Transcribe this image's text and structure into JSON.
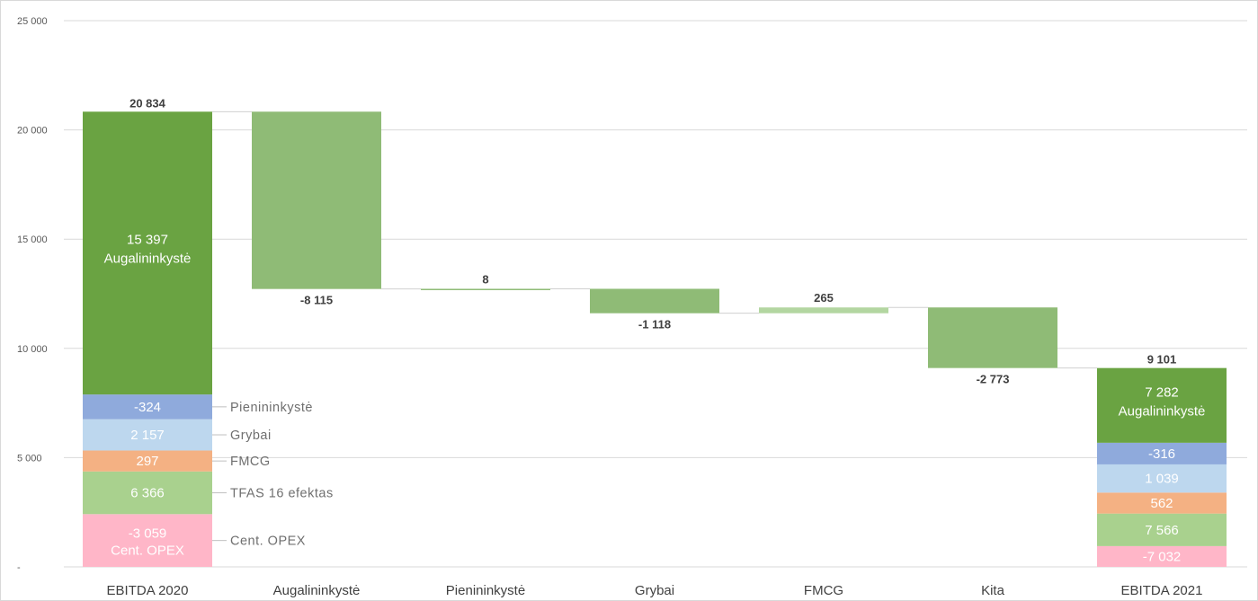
{
  "chart_data": {
    "type": "waterfall",
    "y_ticks": [
      "-",
      "5 000",
      "10 000",
      "15 000",
      "20 000",
      "25 000"
    ],
    "ylim": [
      0,
      25000
    ],
    "grid": true,
    "categories": [
      "EBITDA 2020",
      "Augalininkystė",
      "Pienininkystė",
      "Grybai",
      "FMCG",
      "Kita",
      "EBITDA 2021"
    ],
    "totals": [
      {
        "category": "EBITDA 2020",
        "value": 20834,
        "label": "20 834",
        "segments": [
          {
            "name": "Cent. OPEX",
            "value": 2413,
            "label": "-3 059",
            "label2": "Cent. OPEX",
            "color": "#ffb6c8",
            "callout": "Cent. OPEX"
          },
          {
            "name": "TFAS 16 efektas",
            "value": 1953,
            "label": "6 366",
            "color": "#a9d18e",
            "callout": "TFAS 16 efektas"
          },
          {
            "name": "FMCG",
            "value": 960,
            "label": "297",
            "color": "#f4b183",
            "callout": "FMCG"
          },
          {
            "name": "Grybai",
            "value": 1434,
            "label": "2 157",
            "color": "#bdd7ee",
            "callout": "Grybai"
          },
          {
            "name": "Pienininkystė",
            "value": 1130,
            "label": "-324",
            "color": "#8faadc",
            "callout": "Pienininkystė"
          },
          {
            "name": "Augalininkystė",
            "value": 12944,
            "label": "15 397",
            "label2": "Augalininkystė",
            "color": "#6aa342"
          }
        ]
      },
      {
        "category": "EBITDA 2021",
        "value": 9101,
        "label": "9 101",
        "segments": [
          {
            "name": "Cent. OPEX",
            "value": 950,
            "label": "-7 032",
            "color": "#ffb6c8"
          },
          {
            "name": "TFAS 16 efektas",
            "value": 1490,
            "label": "7 566",
            "color": "#a9d18e"
          },
          {
            "name": "FMCG",
            "value": 960,
            "label": "562",
            "color": "#f4b183"
          },
          {
            "name": "Grybai",
            "value": 1290,
            "label": "1 039",
            "color": "#bdd7ee"
          },
          {
            "name": "Pienininkystė",
            "value": 990,
            "label": "-316",
            "color": "#8faadc"
          },
          {
            "name": "Augalininkystė",
            "value": 3421,
            "label": "7 282",
            "label2": "Augalininkystė",
            "color": "#6aa342"
          }
        ]
      }
    ],
    "changes": [
      {
        "category": "Augalininkystė",
        "from": 20834,
        "to": 12719,
        "label": "-8 115",
        "color": "#8fbb76"
      },
      {
        "category": "Pienininkystė",
        "from": 12719,
        "to": 12727,
        "label": "8",
        "color": "#8fbb76"
      },
      {
        "category": "Grybai",
        "from": 12727,
        "to": 11609,
        "label": "-1 118",
        "color": "#8fbb76"
      },
      {
        "category": "FMCG",
        "from": 11609,
        "to": 11874,
        "label": "265",
        "color": "#b3d6a1"
      },
      {
        "category": "Kita",
        "from": 11874,
        "to": 9101,
        "label": "-2 773",
        "color": "#8fbb76"
      }
    ]
  }
}
